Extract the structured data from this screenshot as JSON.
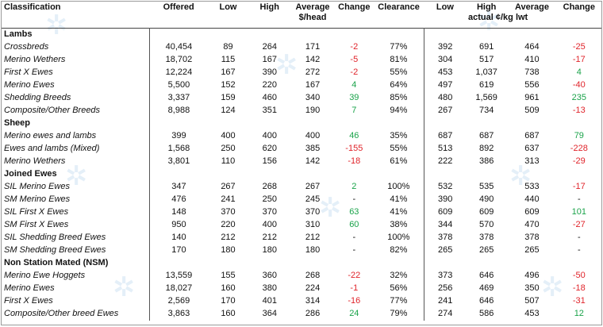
{
  "headers": {
    "classification": "Classification",
    "offered": "Offered",
    "low": "Low",
    "high": "High",
    "average": "Average",
    "head_unit": "$/head",
    "change": "Change",
    "clearance": "Clearance",
    "low2": "Low",
    "high2": "High",
    "average2": "Average",
    "kg_unit": "actual ¢/kg lwt",
    "change2": "Change"
  },
  "sections": [
    {
      "title": "Lambs",
      "rows": [
        {
          "name": "Crossbreds",
          "offered": "40,454",
          "low": "89",
          "high": "264",
          "avg": "171",
          "change": "-2",
          "clearance": "77%",
          "low2": "392",
          "high2": "691",
          "avg2": "464",
          "change2": "-25"
        },
        {
          "name": "Merino Wethers",
          "offered": "18,702",
          "low": "115",
          "high": "167",
          "avg": "142",
          "change": "-5",
          "clearance": "81%",
          "low2": "304",
          "high2": "517",
          "avg2": "410",
          "change2": "-17"
        },
        {
          "name": "First X Ewes",
          "offered": "12,224",
          "low": "167",
          "high": "390",
          "avg": "272",
          "change": "-2",
          "clearance": "55%",
          "low2": "453",
          "high2": "1,037",
          "avg2": "738",
          "change2": "4"
        },
        {
          "name": "Merino Ewes",
          "offered": "5,500",
          "low": "152",
          "high": "220",
          "avg": "167",
          "change": "4",
          "clearance": "64%",
          "low2": "497",
          "high2": "619",
          "avg2": "556",
          "change2": "-40"
        },
        {
          "name": "Shedding Breeds",
          "offered": "3,337",
          "low": "159",
          "high": "460",
          "avg": "340",
          "change": "39",
          "clearance": "85%",
          "low2": "480",
          "high2": "1,569",
          "avg2": "961",
          "change2": "235"
        },
        {
          "name": "Composite/Other Breeds",
          "offered": "8,988",
          "low": "124",
          "high": "351",
          "avg": "190",
          "change": "7",
          "clearance": "94%",
          "low2": "267",
          "high2": "734",
          "avg2": "509",
          "change2": "-13"
        }
      ]
    },
    {
      "title": "Sheep",
      "rows": [
        {
          "name": "Merino ewes and lambs",
          "offered": "399",
          "low": "400",
          "high": "400",
          "avg": "400",
          "change": "46",
          "clearance": "35%",
          "low2": "687",
          "high2": "687",
          "avg2": "687",
          "change2": "79"
        },
        {
          "name": "Ewes and lambs (Mixed)",
          "offered": "1,568",
          "low": "250",
          "high": "620",
          "avg": "385",
          "change": "-155",
          "clearance": "55%",
          "low2": "513",
          "high2": "892",
          "avg2": "637",
          "change2": "-228"
        },
        {
          "name": "Merino Wethers",
          "offered": "3,801",
          "low": "110",
          "high": "156",
          "avg": "142",
          "change": "-18",
          "clearance": "61%",
          "low2": "222",
          "high2": "386",
          "avg2": "313",
          "change2": "-29"
        }
      ]
    },
    {
      "title": "Joined Ewes",
      "rows": [
        {
          "name": "SIL Merino Ewes",
          "offered": "347",
          "low": "267",
          "high": "268",
          "avg": "267",
          "change": "2",
          "clearance": "100%",
          "low2": "532",
          "high2": "535",
          "avg2": "533",
          "change2": "-17"
        },
        {
          "name": "SM Merino Ewes",
          "offered": "476",
          "low": "241",
          "high": "250",
          "avg": "245",
          "change": "-",
          "clearance": "41%",
          "low2": "390",
          "high2": "490",
          "avg2": "440",
          "change2": "-"
        },
        {
          "name": "SIL First X Ewes",
          "offered": "148",
          "low": "370",
          "high": "370",
          "avg": "370",
          "change": "63",
          "clearance": "41%",
          "low2": "609",
          "high2": "609",
          "avg2": "609",
          "change2": "101"
        },
        {
          "name": "SM First X Ewes",
          "offered": "950",
          "low": "220",
          "high": "400",
          "avg": "310",
          "change": "60",
          "clearance": "38%",
          "low2": "344",
          "high2": "570",
          "avg2": "470",
          "change2": "-27"
        },
        {
          "name": "SIL Shedding Breed Ewes",
          "offered": "140",
          "low": "212",
          "high": "212",
          "avg": "212",
          "change": "-",
          "clearance": "100%",
          "low2": "378",
          "high2": "378",
          "avg2": "378",
          "change2": "-"
        },
        {
          "name": "SM Shedding Breed Ewes",
          "offered": "170",
          "low": "180",
          "high": "180",
          "avg": "180",
          "change": "-",
          "clearance": "82%",
          "low2": "265",
          "high2": "265",
          "avg2": "265",
          "change2": "-"
        }
      ]
    },
    {
      "title": "Non Station Mated (NSM)",
      "rows": [
        {
          "name": "Merino Ewe Hoggets",
          "offered": "13,559",
          "low": "155",
          "high": "360",
          "avg": "268",
          "change": "-22",
          "clearance": "32%",
          "low2": "373",
          "high2": "646",
          "avg2": "496",
          "change2": "-50"
        },
        {
          "name": "Merino Ewes",
          "offered": "18,027",
          "low": "160",
          "high": "380",
          "avg": "224",
          "change": "-1",
          "clearance": "56%",
          "low2": "256",
          "high2": "469",
          "avg2": "350",
          "change2": "-18"
        },
        {
          "name": "First X Ewes",
          "offered": "2,569",
          "low": "170",
          "high": "401",
          "avg": "314",
          "change": "-16",
          "clearance": "77%",
          "low2": "241",
          "high2": "646",
          "avg2": "507",
          "change2": "-31"
        },
        {
          "name": "Composite/Other breed Ewes",
          "offered": "3,863",
          "low": "160",
          "high": "364",
          "avg": "286",
          "change": "24",
          "clearance": "79%",
          "low2": "274",
          "high2": "586",
          "avg2": "453",
          "change2": "12"
        }
      ]
    }
  ],
  "colors": {
    "positive": "#1aa34a",
    "negative": "#e0242b",
    "watermark": "#cfe2f3"
  }
}
